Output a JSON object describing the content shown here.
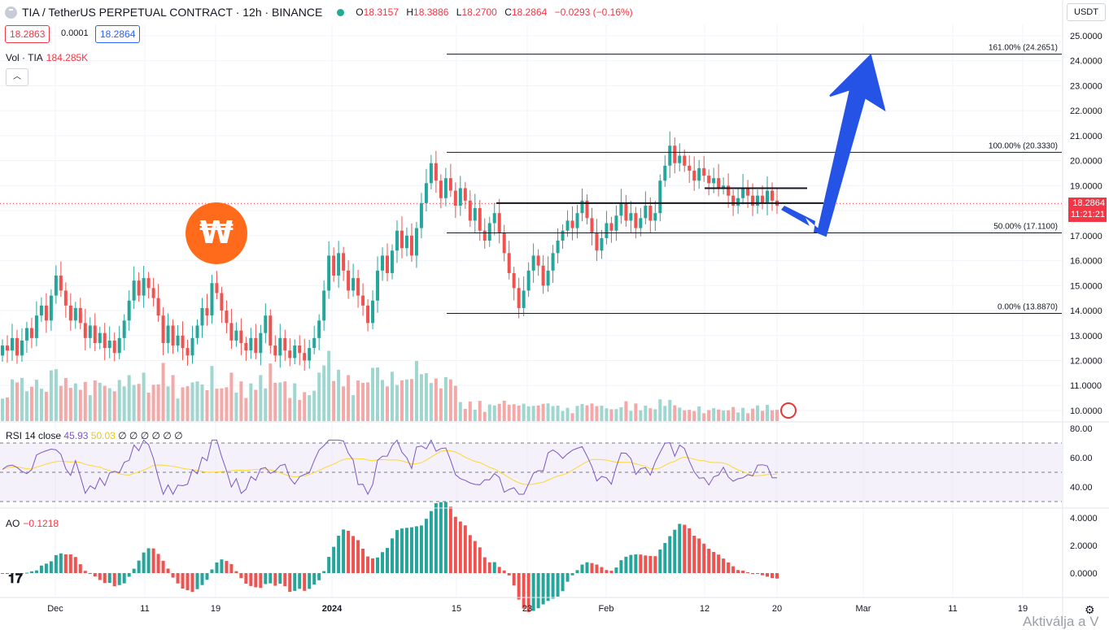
{
  "header": {
    "symbol": "TIA / TetherUS PERPETUAL CONTRACT · 12h · BINANCE",
    "o_label": "O",
    "o": "18.3157",
    "h_label": "H",
    "h": "18.3886",
    "l_label": "L",
    "l": "18.2700",
    "c_label": "C",
    "c": "18.2864",
    "change": "−0.0293 (−0.16%)"
  },
  "bidask": {
    "bid": "18.2863",
    "spread": "0.0001",
    "ask": "18.2864"
  },
  "volume": {
    "label": "Vol · TIA",
    "value": "184.285K"
  },
  "currency_button": "USDT",
  "price_tag": {
    "price": "18.2864",
    "countdown": "11:21:21"
  },
  "rsi": {
    "label": "RSI 14 close",
    "rsi_value": "45.93",
    "ma_value": "50.03",
    "extra": "∅ ∅ ∅ ∅ ∅ ∅"
  },
  "ao": {
    "label": "AO",
    "value": "−0.1218"
  },
  "price_axis": [
    "25.0000",
    "24.0000",
    "23.0000",
    "22.0000",
    "21.0000",
    "20.0000",
    "19.0000",
    "18.0000",
    "17.0000",
    "16.0000",
    "15.0000",
    "14.0000",
    "13.0000",
    "12.0000",
    "11.0000",
    "10.0000"
  ],
  "rsi_axis": [
    "80.00",
    "60.00",
    "40.00"
  ],
  "ao_axis": [
    "4.0000",
    "2.0000",
    "0.0000"
  ],
  "time_axis": [
    "Dec",
    "11",
    "19",
    "2024",
    "15",
    "23",
    "Feb",
    "12",
    "20",
    "Mar",
    "11",
    "19"
  ],
  "fib_levels": [
    {
      "label": "161.00% (24.2651)",
      "price": 24.2651
    },
    {
      "label": "100.00% (20.3330)",
      "price": 20.333
    },
    {
      "label": "50.00% (17.1100)",
      "price": 17.11
    },
    {
      "label": "0.00% (13.8870)",
      "price": 13.887
    }
  ],
  "colors": {
    "up": "#26a69a",
    "down": "#ef5350",
    "vol_up": "#9fd6cf",
    "vol_down": "#f2a9a7",
    "arrow": "#2553e6",
    "logo": "#ff6b1a",
    "rsi_line": "#7e57c2",
    "rsi_ma": "#fdd835"
  },
  "icons": {
    "settings": "gear-icon",
    "logo": "tradingview-logo-icon",
    "collapse": "chevron-up-icon"
  },
  "watermark": "Aktiválja a V"
}
